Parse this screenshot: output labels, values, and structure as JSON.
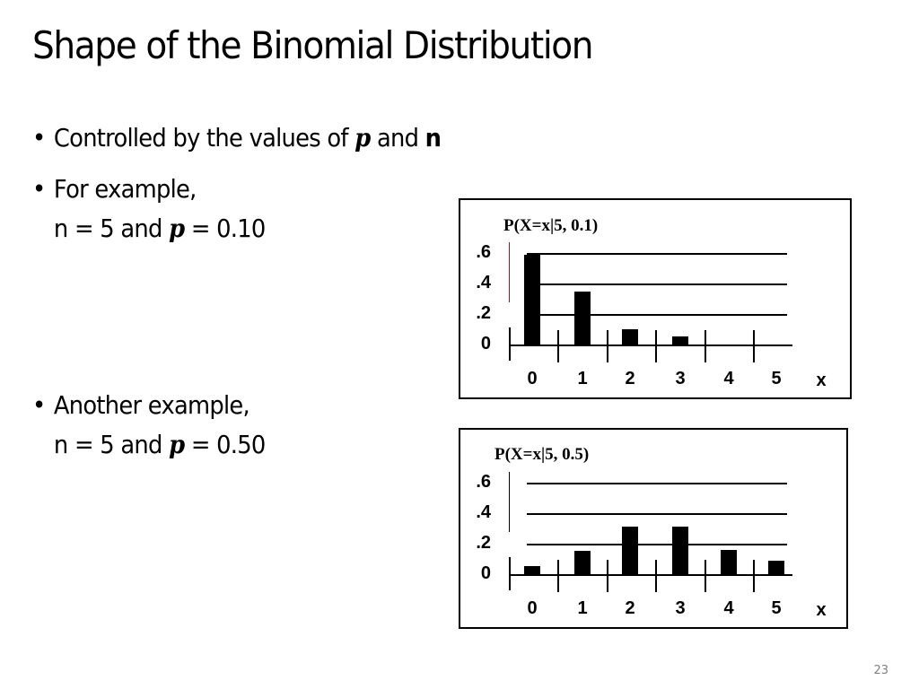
{
  "slide": {
    "title": "Shape of the Binomial Distribution",
    "page_number": "23",
    "bullets": [
      {
        "parts": [
          "Controlled by the values of ",
          "p",
          " and ",
          "n"
        ]
      },
      {
        "line1": "For example,",
        "line2_parts": [
          "n = 5 and ",
          "p",
          " = 0.10"
        ]
      },
      {
        "line1": "Another example,",
        "line2_parts": [
          "n = 5 and ",
          "p",
          " = 0.50"
        ]
      }
    ]
  },
  "chart_data": [
    {
      "type": "bar",
      "title": "P(X=x|5, 0.1)",
      "xlabel": "x",
      "ylabel": "",
      "categories": [
        "0",
        "1",
        "2",
        "3",
        "4",
        "5"
      ],
      "values": [
        0.59,
        0.35,
        0.1,
        0.05,
        0.0,
        0.0
      ],
      "y_ticks": [
        ".6",
        ".4",
        ".2",
        "0"
      ],
      "ylim": [
        0,
        0.6
      ],
      "grid": true
    },
    {
      "type": "bar",
      "title": "P(X=x|5, 0.5)",
      "xlabel": "x",
      "ylabel": "",
      "categories": [
        "0",
        "1",
        "2",
        "3",
        "4",
        "5"
      ],
      "values": [
        0.05,
        0.15,
        0.31,
        0.31,
        0.16,
        0.09
      ],
      "y_ticks": [
        ".6",
        ".4",
        ".2",
        "0"
      ],
      "ylim": [
        0,
        0.6
      ],
      "grid": true
    }
  ]
}
